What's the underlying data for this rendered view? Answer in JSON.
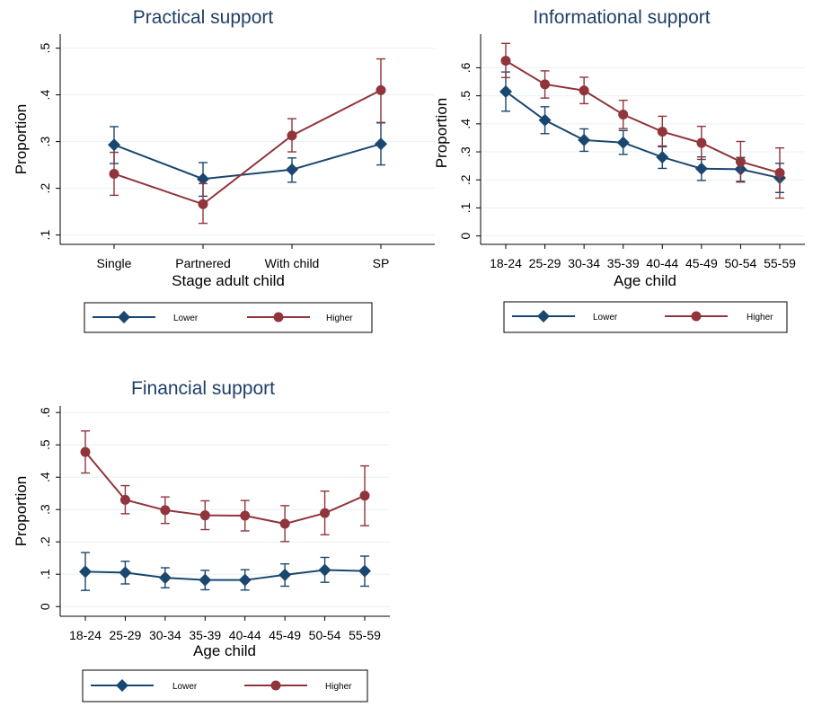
{
  "colors": {
    "lower": "#1a476f",
    "higher": "#90353b",
    "grid": "#eaf0f3",
    "axis": "#000000"
  },
  "chart_data": [
    {
      "type": "line",
      "title": "Practical support",
      "xlabel": "Stage adult child",
      "ylabel": "Proportion",
      "categories": [
        "Single",
        "Partnered",
        "With child",
        "SP"
      ],
      "ylim": [
        0.08,
        0.53
      ],
      "yticks": [
        0.1,
        0.2,
        0.3,
        0.4,
        0.5
      ],
      "ytick_labels": [
        ".1",
        ".2",
        ".3",
        ".4",
        ".5"
      ],
      "grid": true,
      "legend": "below",
      "series": [
        {
          "name": "Lower",
          "marker": "diamond",
          "values": [
            0.293,
            0.22,
            0.24,
            0.295
          ],
          "ci_low": [
            0.253,
            0.183,
            0.213,
            0.25
          ],
          "ci_high": [
            0.332,
            0.255,
            0.265,
            0.34
          ]
        },
        {
          "name": "Higher",
          "marker": "circle",
          "values": [
            0.231,
            0.166,
            0.313,
            0.41
          ],
          "ci_low": [
            0.185,
            0.125,
            0.278,
            0.341
          ],
          "ci_high": [
            0.277,
            0.21,
            0.349,
            0.477
          ]
        }
      ]
    },
    {
      "type": "line",
      "title": "Informational support",
      "xlabel": "Age child",
      "ylabel": "Proportion",
      "categories": [
        "18-24",
        "25-29",
        "30-34",
        "35-39",
        "40-44",
        "45-49",
        "50-54",
        "55-59"
      ],
      "ylim": [
        -0.03,
        0.72
      ],
      "yticks": [
        0,
        0.1,
        0.2,
        0.3,
        0.4,
        0.5,
        0.6
      ],
      "ytick_labels": [
        "0",
        ".1",
        ".2",
        ".3",
        ".4",
        ".5",
        ".6"
      ],
      "grid": true,
      "legend": "below",
      "series": [
        {
          "name": "Lower",
          "marker": "diamond",
          "values": [
            0.515,
            0.413,
            0.342,
            0.333,
            0.281,
            0.24,
            0.238,
            0.207
          ],
          "ci_low": [
            0.445,
            0.365,
            0.302,
            0.291,
            0.241,
            0.198,
            0.195,
            0.155
          ],
          "ci_high": [
            0.585,
            0.461,
            0.382,
            0.376,
            0.321,
            0.282,
            0.28,
            0.259
          ]
        },
        {
          "name": "Higher",
          "marker": "circle",
          "values": [
            0.625,
            0.541,
            0.519,
            0.433,
            0.372,
            0.332,
            0.265,
            0.225
          ],
          "ci_low": [
            0.565,
            0.492,
            0.472,
            0.383,
            0.318,
            0.273,
            0.192,
            0.135
          ],
          "ci_high": [
            0.687,
            0.589,
            0.566,
            0.484,
            0.427,
            0.391,
            0.337,
            0.314
          ]
        }
      ]
    },
    {
      "type": "line",
      "title": "Financial support",
      "xlabel": "Age child",
      "ylabel": "Proportion",
      "categories": [
        "18-24",
        "25-29",
        "30-34",
        "35-39",
        "40-44",
        "45-49",
        "50-54",
        "55-59"
      ],
      "ylim": [
        -0.03,
        0.62
      ],
      "yticks": [
        0,
        0.1,
        0.2,
        0.3,
        0.4,
        0.5,
        0.6
      ],
      "ytick_labels": [
        "0",
        ".1",
        ".2",
        ".3",
        ".4",
        ".5",
        ".6"
      ],
      "grid": true,
      "legend": "below",
      "series": [
        {
          "name": "Lower",
          "marker": "diamond",
          "values": [
            0.108,
            0.105,
            0.089,
            0.082,
            0.082,
            0.098,
            0.113,
            0.11
          ],
          "ci_low": [
            0.05,
            0.07,
            0.058,
            0.052,
            0.051,
            0.063,
            0.075,
            0.063
          ],
          "ci_high": [
            0.167,
            0.14,
            0.12,
            0.112,
            0.114,
            0.132,
            0.152,
            0.156
          ]
        },
        {
          "name": "Higher",
          "marker": "circle",
          "values": [
            0.478,
            0.33,
            0.298,
            0.282,
            0.281,
            0.256,
            0.289,
            0.343
          ],
          "ci_low": [
            0.413,
            0.287,
            0.257,
            0.238,
            0.234,
            0.201,
            0.222,
            0.25
          ],
          "ci_high": [
            0.543,
            0.374,
            0.339,
            0.327,
            0.328,
            0.312,
            0.357,
            0.435
          ]
        }
      ]
    }
  ]
}
